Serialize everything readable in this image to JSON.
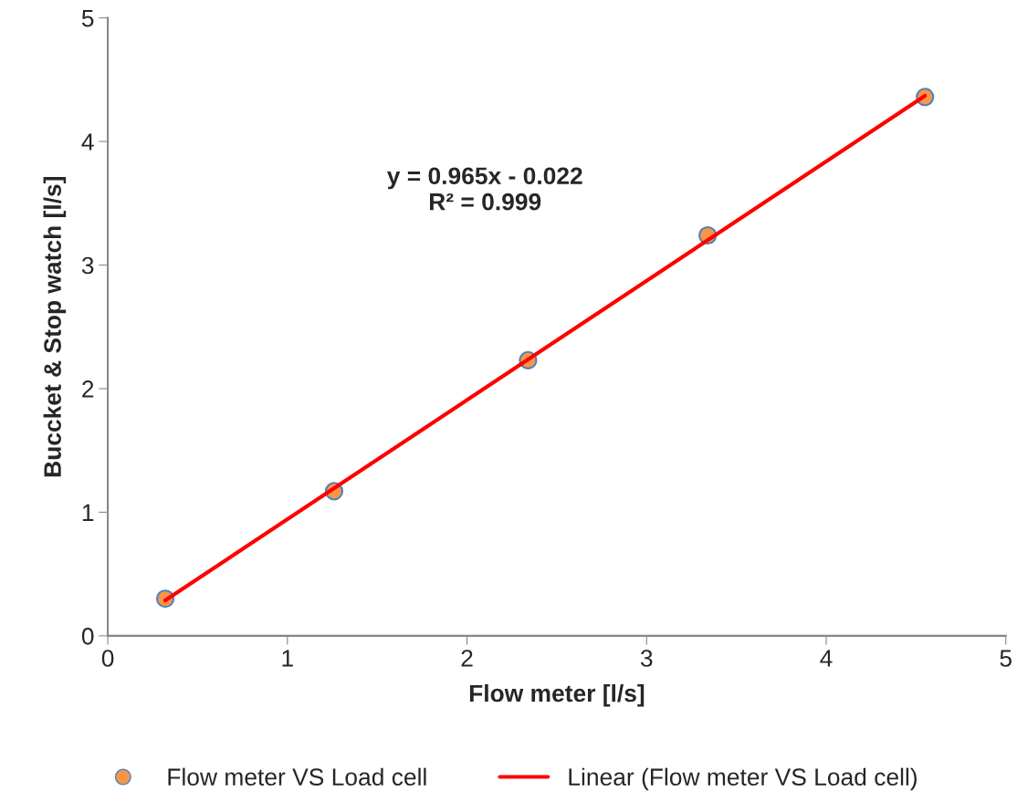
{
  "chart_data": {
    "type": "scatter",
    "xlabel": "Flow meter [l/s]",
    "ylabel": "Buccket & Stop watch [l/s]",
    "series": [
      {
        "name": "Flow meter VS Load cell",
        "color": "#f79646",
        "marker": "circle",
        "x": [
          0.32,
          1.26,
          2.34,
          3.34,
          4.55
        ],
        "values": [
          0.3,
          1.17,
          2.23,
          3.24,
          4.36
        ]
      },
      {
        "name": "Linear (Flow meter VS Load cell)",
        "type": "line",
        "color": "#ff0000",
        "line_style": "solid",
        "marker": "none",
        "x": [
          0.32,
          4.55
        ],
        "values": [
          0.287,
          4.369
        ]
      }
    ],
    "annotations": [
      "y = 0.965x - 0.022\nR² = 0.999"
    ],
    "xlim": [
      0,
      5
    ],
    "ylim": [
      0,
      5
    ],
    "xticks": [
      0,
      1,
      2,
      3,
      4,
      5
    ],
    "yticks": [
      0,
      1,
      2,
      3,
      4,
      5
    ],
    "grid": false,
    "legend": "bottom"
  }
}
